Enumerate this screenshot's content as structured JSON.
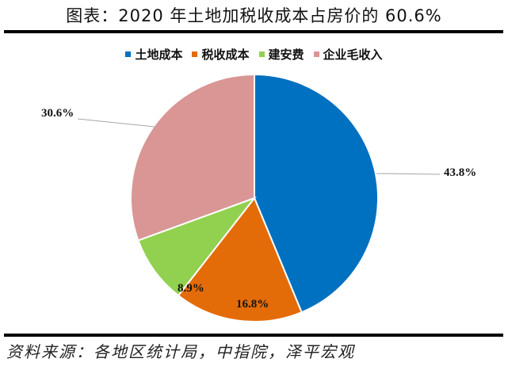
{
  "title": "图表：2020 年土地加税收成本占房价的 60.6%",
  "source": "资料来源：各地区统计局，中指院，泽平宏观",
  "legend": [
    {
      "label": "土地成本",
      "color": "#0070C0"
    },
    {
      "label": "税收成本",
      "color": "#E36C09"
    },
    {
      "label": "建安费",
      "color": "#92D050"
    },
    {
      "label": "企业毛收入",
      "color": "#D99694"
    }
  ],
  "labels": {
    "land": "43.8%",
    "tax": "16.8%",
    "construction": "8.9%",
    "margin": "30.6%"
  },
  "chart_data": {
    "type": "pie",
    "title": "图表：2020 年土地加税收成本占房价的 60.6%",
    "categories": [
      "土地成本",
      "税收成本",
      "建安费",
      "企业毛收入"
    ],
    "values": [
      43.8,
      16.8,
      8.9,
      30.6
    ],
    "colors": [
      "#0070C0",
      "#E36C09",
      "#92D050",
      "#D99694"
    ],
    "start_angle_deg": 0,
    "direction": "clockwise",
    "legend_position": "top",
    "data_labels": [
      "43.8%",
      "16.8%",
      "8.9%",
      "30.6%"
    ]
  }
}
